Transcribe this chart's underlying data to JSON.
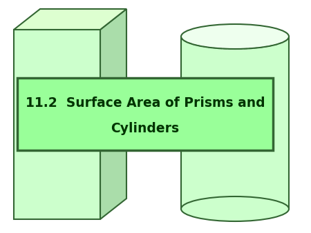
{
  "title_line1": "11.2  Surface Area of Prisms and",
  "title_line2": "Cylinders",
  "bg_color": "#ffffff",
  "face_green": "#ccffcc",
  "side_green": "#aaddaa",
  "top_green": "#ddffd0",
  "box_green": "#99ff99",
  "border_color": "#336633",
  "text_color": "#003300",
  "title_fontsize": 13.5,
  "cyl_face": "#ccffcc",
  "cyl_top": "#eeffee",
  "cyl_border": "#336633"
}
